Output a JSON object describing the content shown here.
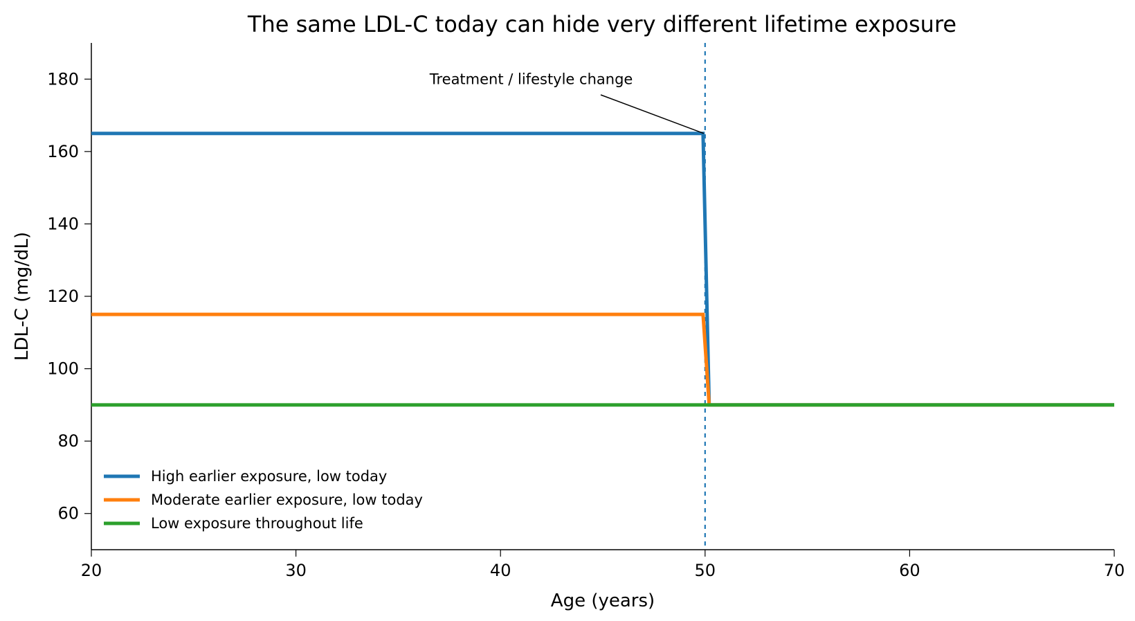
{
  "chart_data": {
    "type": "line",
    "title": "The same LDL-C today can hide very different lifetime exposure",
    "xlabel": "Age (years)",
    "ylabel": "LDL-C (mg/dL)",
    "xlim": [
      20,
      70
    ],
    "ylim": [
      50,
      190
    ],
    "x_ticks": [
      20,
      30,
      40,
      50,
      60,
      70
    ],
    "x_tick_labels": [
      "20",
      "30",
      "40",
      "50",
      "60",
      "70"
    ],
    "y_ticks": [
      60,
      80,
      100,
      120,
      140,
      160,
      180
    ],
    "y_tick_labels": [
      "60",
      "80",
      "100",
      "120",
      "140",
      "160",
      "180"
    ],
    "grid": false,
    "legend_position": "lower-left",
    "series": [
      {
        "name": "High earlier exposure, low today",
        "color": "#1f77b4",
        "x": [
          20,
          49.9,
          50.2,
          70
        ],
        "y": [
          165,
          165,
          90,
          90
        ]
      },
      {
        "name": "Moderate earlier exposure, low today",
        "color": "#ff7f0e",
        "x": [
          20,
          49.9,
          50.2,
          70
        ],
        "y": [
          115,
          115,
          90,
          90
        ]
      },
      {
        "name": "Low exposure throughout life",
        "color": "#2ca02c",
        "x": [
          20,
          70
        ],
        "y": [
          90,
          90
        ]
      }
    ],
    "vertical_marker": {
      "x": 50,
      "color": "#1f77b4",
      "style": "dashed"
    },
    "annotation": {
      "text": "Treatment / lifestyle change",
      "point_x": 50,
      "point_y": 165,
      "text_x": 41.5,
      "text_y": 180
    }
  }
}
